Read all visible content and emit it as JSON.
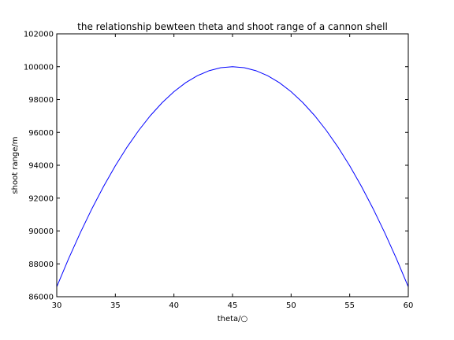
{
  "chart_data": {
    "type": "line",
    "title": "the relationship bewteen theta and shoot range of a cannon shell",
    "xlabel": "theta/○",
    "ylabel": "shoot range/m",
    "xlim": [
      30,
      60
    ],
    "ylim": [
      86000,
      102000
    ],
    "x_ticks": [
      30,
      35,
      40,
      45,
      50,
      55,
      60
    ],
    "y_ticks": [
      86000,
      88000,
      90000,
      92000,
      94000,
      96000,
      98000,
      100000,
      102000
    ],
    "grid": false,
    "series": [
      {
        "color": "#0000ff",
        "x": [
          30,
          31,
          32,
          33,
          34,
          35,
          36,
          37,
          38,
          39,
          40,
          41,
          42,
          43,
          44,
          45,
          46,
          47,
          48,
          49,
          50,
          51,
          52,
          53,
          54,
          55,
          56,
          57,
          58,
          59,
          60
        ],
        "y": [
          86603,
          88295,
          89879,
          91355,
          92718,
          93969,
          95106,
          96126,
          97030,
          97815,
          98481,
          99027,
          99452,
          99756,
          99939,
          100000,
          99939,
          99756,
          99452,
          99027,
          98481,
          97815,
          97030,
          96126,
          95106,
          93969,
          92718,
          91355,
          89879,
          88295,
          86603
        ]
      }
    ]
  }
}
